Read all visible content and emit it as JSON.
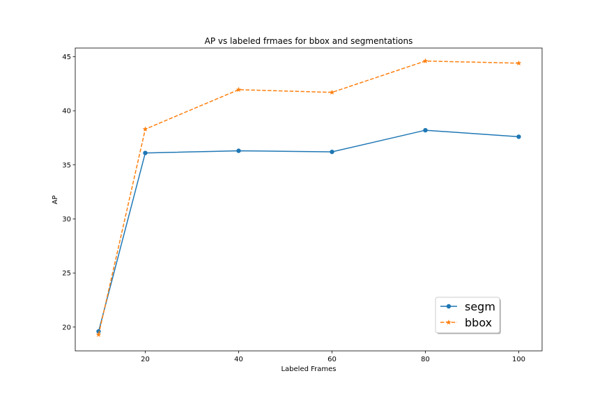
{
  "chart_data": {
    "type": "line",
    "title": "AP vs labeled frmaes for bbox and segmentations",
    "xlabel": "Labeled Frames",
    "ylabel": "AP",
    "x": [
      10,
      20,
      40,
      60,
      80,
      100
    ],
    "xlim": [
      5,
      105
    ],
    "ylim": [
      17.8,
      45.8
    ],
    "xticks": [
      20,
      40,
      60,
      80,
      100
    ],
    "yticks": [
      20,
      25,
      30,
      35,
      40,
      45
    ],
    "legend_position": "lower-right",
    "grid": false,
    "series": [
      {
        "name": "segm",
        "values": [
          19.6,
          36.1,
          36.3,
          36.2,
          38.2,
          37.6
        ],
        "color": "#1f77b4",
        "marker": "circle",
        "linestyle": "solid"
      },
      {
        "name": "bbox",
        "values": [
          19.3,
          38.3,
          41.95,
          41.7,
          44.6,
          44.4
        ],
        "color": "#ff7f0e",
        "marker": "star",
        "linestyle": "dashed"
      }
    ]
  }
}
